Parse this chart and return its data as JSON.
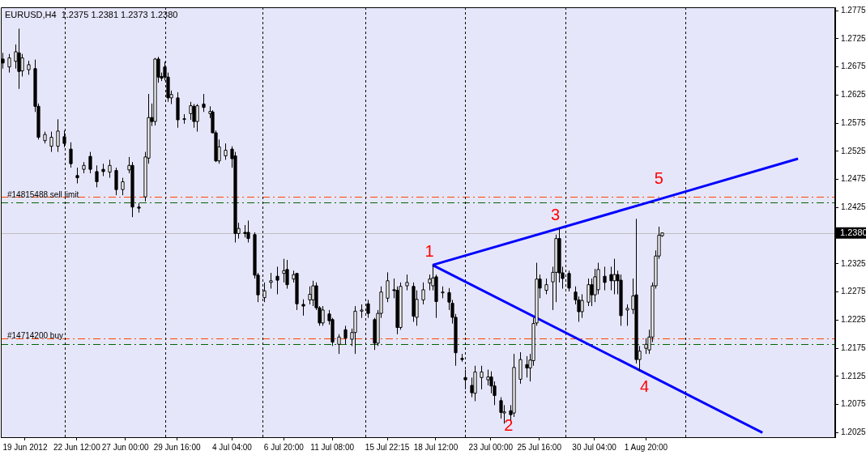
{
  "chart_data": {
    "type": "candlestick",
    "title": "EURUSD,H4  1.2375 1.2381 1.2373 1.2380",
    "categories": [
      null,
      null,
      null,
      null,
      null,
      null,
      null,
      "19 Jun 2012",
      null,
      null,
      null,
      null,
      null,
      null,
      null,
      null,
      null,
      null,
      null,
      null,
      null,
      null,
      null,
      "22 Jun 12:00",
      null,
      null,
      null,
      null,
      null,
      null,
      null,
      null,
      null,
      null,
      null,
      null,
      null,
      null,
      "27 Jun 00:00",
      null,
      null,
      null,
      null,
      null,
      null,
      null,
      null,
      null,
      null,
      null,
      null,
      null,
      null,
      null,
      "29 Jun 16:00",
      null,
      null,
      null,
      null,
      null,
      null,
      null,
      null,
      null,
      null,
      null,
      null,
      null,
      null,
      null,
      null,
      "4 Jul 04:00",
      null,
      null,
      null,
      null,
      null,
      null,
      null,
      null,
      null,
      null,
      null,
      null,
      null,
      null,
      null,
      "6 Jul 20:00",
      null,
      null,
      null,
      null,
      null,
      null,
      null,
      null,
      null,
      null,
      null,
      null,
      null,
      null,
      "11 Jul 08:00",
      null,
      null,
      null,
      null,
      null,
      null,
      null,
      null,
      null,
      null,
      null,
      null,
      null,
      null,
      null,
      null,
      "15 Jul 22:15",
      null,
      null,
      null,
      null,
      null,
      null,
      null,
      null,
      null,
      null,
      null,
      null,
      null,
      null,
      "18 Jul 12:00",
      null,
      null,
      null,
      null,
      null,
      null,
      null,
      null,
      null,
      null,
      null,
      null,
      null,
      null,
      null,
      null,
      "23 Jul 00:00",
      null,
      null,
      null,
      null,
      null,
      null,
      null,
      null,
      null,
      null,
      null,
      null,
      null,
      null,
      "25 Jul 16:00",
      null,
      null,
      null,
      null,
      null,
      null,
      null,
      null,
      null,
      null,
      null,
      null,
      null,
      null,
      null,
      null,
      "30 Jul 04:00",
      null,
      null,
      null,
      null,
      null,
      null,
      null,
      null,
      null,
      null,
      null,
      null,
      null,
      null,
      null,
      "1 Aug 20:00",
      null,
      null,
      null,
      null,
      null,
      null,
      null,
      null,
      null,
      null,
      null,
      null,
      null,
      null,
      null,
      null,
      null,
      null,
      null,
      null,
      null,
      null,
      null,
      null,
      null,
      null,
      null,
      null,
      null,
      null,
      null,
      null,
      null,
      null,
      null,
      null,
      null,
      null,
      null,
      null,
      null,
      null,
      null,
      null,
      null,
      null,
      null,
      null,
      null,
      null,
      null,
      null,
      null,
      null,
      null,
      null,
      null,
      null
    ],
    "ohlc": [
      [
        1.2689,
        1.27,
        1.2672,
        1.2682
      ],
      null,
      [
        1.2675,
        1.2698,
        1.2665,
        1.2691
      ],
      null,
      [
        1.2685,
        1.2715,
        1.2672,
        1.2702
      ],
      [
        1.27,
        1.2743,
        1.2636,
        1.2667
      ],
      [
        1.2668,
        1.2698,
        1.2658,
        1.2691
      ],
      null,
      [
        1.267,
        1.2686,
        1.2661,
        1.2679
      ],
      null,
      [
        1.2672,
        1.2688,
        1.2595,
        1.2605
      ],
      [
        1.2605,
        1.261,
        1.2546,
        1.255
      ],
      null,
      [
        1.2544,
        1.256,
        1.2539,
        1.2555
      ],
      null,
      [
        1.2534,
        1.256,
        1.2524,
        1.255
      ],
      null,
      [
        1.2534,
        1.2582,
        1.2524,
        1.2561
      ],
      null,
      [
        1.2551,
        1.2562,
        1.2532,
        1.2539
      ],
      null,
      [
        1.2529,
        1.2541,
        1.2496,
        1.2503
      ],
      null,
      [
        1.2482,
        1.2496,
        1.2468,
        1.2478
      ],
      null,
      [
        1.2493,
        1.2506,
        1.2486,
        1.25
      ],
      null,
      [
        1.2516,
        1.2524,
        1.2486,
        1.2493
      ],
      null,
      [
        1.2489,
        1.25,
        1.2461,
        1.2471
      ],
      null,
      [
        1.2493,
        1.2503,
        1.2481,
        1.2489
      ],
      null,
      [
        1.2488,
        1.251,
        1.2478,
        1.25
      ],
      null,
      [
        1.2491,
        1.2496,
        1.2447,
        1.2457
      ],
      null,
      [
        1.2457,
        1.2478,
        1.2447,
        1.2471
      ],
      null,
      [
        1.2492,
        1.2515,
        1.2486,
        1.25
      ],
      [
        1.25,
        1.2506,
        1.2408,
        1.2426
      ],
      null,
      [
        1.2426,
        1.2433,
        1.2416,
        1.2424
      ],
      null,
      [
        1.2444,
        1.2524,
        1.2436,
        1.2515
      ],
      [
        1.2513,
        1.2627,
        1.2503,
        1.2585
      ],
      [
        1.2585,
        1.261,
        1.257,
        1.2578
      ],
      [
        1.2578,
        1.2691,
        1.2571,
        1.2689
      ],
      [
        1.2689,
        1.2693,
        1.2647,
        1.2657
      ],
      [
        1.2658,
        1.2665,
        1.265,
        1.2655
      ],
      [
        1.2675,
        1.2684,
        1.2651,
        1.2657
      ],
      [
        1.2657,
        1.2665,
        1.2613,
        1.262
      ],
      [
        1.262,
        1.2633,
        1.2609,
        1.2626
      ],
      null,
      [
        1.262,
        1.263,
        1.2567,
        1.2581
      ],
      null,
      [
        1.2582,
        1.2591,
        1.2574,
        1.2583
      ],
      null,
      [
        1.2592,
        1.2613,
        1.2581,
        1.2606
      ],
      [
        1.2605,
        1.2609,
        1.2567,
        1.2578
      ],
      [
        1.2578,
        1.2609,
        1.256,
        1.2606
      ],
      null,
      [
        1.2609,
        1.2627,
        1.2595,
        1.2603
      ],
      null,
      [
        1.2592,
        1.2605,
        1.2584,
        1.2596
      ],
      [
        1.2595,
        1.2598,
        1.2557,
        1.2558
      ],
      [
        1.2558,
        1.2562,
        1.2506,
        1.2508
      ],
      [
        1.2508,
        1.2546,
        1.2503,
        1.2533
      ],
      null,
      [
        1.2517,
        1.2539,
        1.251,
        1.2527
      ],
      null,
      [
        1.2529,
        1.2534,
        1.2496,
        1.2512
      ],
      [
        1.2517,
        1.2524,
        1.2363,
        1.2379
      ],
      [
        1.2379,
        1.2398,
        1.237,
        1.2388
      ],
      null,
      [
        1.2381,
        1.2394,
        1.2372,
        1.2379
      ],
      [
        1.2381,
        1.2402,
        1.2363,
        1.237
      ],
      null,
      [
        1.2377,
        1.2381,
        1.2299,
        1.2305
      ],
      [
        1.2305,
        1.2309,
        1.2257,
        1.227
      ],
      null,
      [
        1.2265,
        1.2292,
        1.2257,
        1.2277
      ],
      null,
      [
        1.2292,
        1.2309,
        1.2281,
        1.2295
      ],
      null,
      [
        1.2303,
        1.232,
        1.2271,
        1.2296
      ],
      null,
      [
        1.2308,
        1.2334,
        1.2292,
        1.2313
      ],
      [
        1.2315,
        1.2332,
        1.2281,
        1.2288
      ],
      null,
      [
        1.2298,
        1.2313,
        1.2292,
        1.2306
      ],
      [
        1.2308,
        1.2309,
        1.2243,
        1.2254
      ],
      null,
      [
        1.2253,
        1.2262,
        1.2233,
        1.225
      ],
      null,
      [
        1.2261,
        1.2285,
        1.2253,
        1.2271
      ],
      [
        1.2261,
        1.2295,
        1.225,
        1.2286
      ],
      [
        1.2286,
        1.2292,
        1.2243,
        1.2247
      ],
      [
        1.2247,
        1.225,
        1.2215,
        1.222
      ],
      [
        1.222,
        1.225,
        1.2215,
        1.2243
      ],
      null,
      [
        1.2236,
        1.2243,
        1.2217,
        1.2224
      ],
      [
        1.2226,
        1.2229,
        1.2179,
        1.2186
      ],
      null,
      [
        1.2182,
        1.22,
        1.2165,
        1.2195
      ],
      null,
      [
        1.2208,
        1.2215,
        1.2182,
        1.2193
      ],
      null,
      [
        1.2191,
        1.221,
        1.2179,
        1.2203
      ],
      [
        1.2203,
        1.225,
        1.2165,
        1.2241
      ],
      null,
      [
        1.2241,
        1.2253,
        1.2229,
        1.2243
      ],
      null,
      [
        1.2254,
        1.2261,
        1.2229,
        1.2237
      ],
      null,
      [
        1.2226,
        1.2229,
        1.2172,
        1.2184
      ],
      [
        1.2184,
        1.2243,
        1.2179,
        1.2237
      ],
      [
        1.2237,
        1.2285,
        1.2229,
        1.2275
      ],
      null,
      [
        1.2264,
        1.231,
        1.2257,
        1.2295
      ],
      null,
      [
        1.2279,
        1.2299,
        1.2264,
        1.2278
      ],
      [
        1.2278,
        1.2285,
        1.22,
        1.2212
      ],
      [
        1.2212,
        1.2292,
        1.2208,
        1.2285
      ],
      null,
      [
        1.2286,
        1.2306,
        1.2278,
        1.2292
      ],
      null,
      [
        1.2285,
        1.2292,
        1.2222,
        1.2232
      ],
      [
        1.223,
        1.2278,
        1.2215,
        1.2262
      ],
      null,
      [
        1.2261,
        1.2292,
        1.2253,
        1.2279
      ],
      null,
      [
        1.2291,
        1.2306,
        1.2278,
        1.2298
      ],
      [
        1.2286,
        1.2323,
        1.2278,
        1.23
      ],
      [
        1.2302,
        1.2306,
        1.2229,
        1.2258
      ],
      null,
      [
        1.2274,
        1.2285,
        1.2264,
        1.2275
      ],
      null,
      [
        1.2274,
        1.2282,
        1.2243,
        1.2257
      ],
      [
        1.2255,
        1.2261,
        1.2219,
        1.223
      ],
      [
        1.223,
        1.2236,
        1.2144,
        1.2167
      ],
      null,
      [
        1.2157,
        1.2165,
        1.2151,
        1.2155
      ],
      [
        1.2123,
        1.2137,
        1.2102,
        1.2119
      ],
      null,
      [
        1.2109,
        1.2123,
        1.2088,
        1.2096
      ],
      [
        1.2095,
        1.2144,
        1.2081,
        1.2133
      ],
      null,
      [
        1.2123,
        1.2144,
        1.2102,
        1.2133
      ],
      null,
      [
        1.2119,
        1.2137,
        1.2109,
        1.2124
      ],
      [
        1.2124,
        1.2134,
        1.2095,
        1.2108
      ],
      [
        1.2108,
        1.2116,
        1.2074,
        1.2091
      ],
      null,
      [
        1.2082,
        1.2088,
        1.205,
        1.2061
      ],
      [
        1.206,
        1.2074,
        1.2041,
        1.2062
      ],
      null,
      [
        1.2064,
        1.2074,
        1.2046,
        1.2057
      ],
      [
        1.206,
        1.2165,
        1.2053,
        1.2141
      ],
      null,
      [
        1.212,
        1.2168,
        1.2112,
        1.2155
      ],
      null,
      [
        1.2146,
        1.2161,
        1.2123,
        1.214
      ],
      [
        1.214,
        1.2165,
        1.2116,
        1.2154
      ],
      [
        1.2153,
        1.2229,
        1.2144,
        1.2219
      ],
      [
        1.222,
        1.2327,
        1.2215,
        1.2298
      ],
      [
        1.2298,
        1.2306,
        1.2264,
        1.2282
      ],
      null,
      [
        1.2278,
        1.2299,
        1.2271,
        1.2288
      ],
      null,
      [
        1.2293,
        1.232,
        1.2243,
        1.231
      ],
      [
        1.231,
        1.2377,
        1.2257,
        1.237
      ],
      [
        1.237,
        1.2388,
        1.2292,
        1.2309
      ],
      [
        1.2309,
        1.232,
        1.2281,
        1.2299
      ],
      null,
      [
        1.2308,
        1.2313,
        1.2276,
        1.2282
      ],
      null,
      [
        1.2275,
        1.2285,
        1.2253,
        1.2261
      ],
      [
        1.2261,
        1.2267,
        1.2222,
        1.224
      ],
      [
        1.224,
        1.2271,
        1.2229,
        1.226
      ],
      null,
      [
        1.2257,
        1.2299,
        1.225,
        1.2288
      ],
      [
        1.2288,
        1.2299,
        1.225,
        1.227
      ],
      [
        1.227,
        1.2316,
        1.2257,
        1.2302
      ],
      [
        1.2279,
        1.2327,
        1.2271,
        1.2315
      ],
      null,
      [
        1.2303,
        1.232,
        1.2278,
        1.2292
      ],
      null,
      [
        1.2306,
        1.232,
        1.2278,
        1.2295
      ],
      [
        1.2295,
        1.2334,
        1.2271,
        1.2306
      ],
      [
        1.2306,
        1.2313,
        1.2271,
        1.2295
      ],
      [
        1.2296,
        1.2306,
        1.2215,
        1.2233
      ],
      null,
      [
        1.2243,
        1.2253,
        1.2215,
        1.2246
      ],
      null,
      [
        1.2244,
        1.2299,
        1.2236,
        1.2268
      ],
      [
        1.227,
        1.2405,
        1.2148,
        1.2155
      ],
      [
        1.2155,
        1.2179,
        1.2134,
        1.217
      ],
      null,
      [
        1.2175,
        1.2193,
        1.2165,
        1.2182
      ],
      [
        1.2172,
        1.2208,
        1.2165,
        1.2195
      ],
      [
        1.2195,
        1.2292,
        1.2186,
        1.2286
      ],
      [
        1.2286,
        1.2349,
        1.2281,
        1.2339
      ],
      [
        1.2339,
        1.2391,
        1.2334,
        1.2376
      ],
      [
        1.2375,
        1.2381,
        1.2373,
        1.238
      ],
      null,
      null,
      null,
      null,
      null,
      null,
      null,
      null,
      null,
      null,
      null,
      null,
      null,
      null,
      null,
      null,
      null,
      null,
      null,
      null,
      null,
      null,
      null,
      null,
      null,
      null,
      null,
      null,
      null,
      null,
      null,
      null,
      null,
      null,
      null,
      null,
      null,
      null,
      null,
      null,
      null,
      null,
      null,
      null,
      null,
      null,
      null,
      null,
      null,
      null,
      null,
      null,
      null
    ],
    "value_labels": [
      null,
      null,
      null,
      null,
      null,
      null,
      null,
      null,
      null,
      null,
      null,
      null,
      null,
      null,
      null,
      null,
      null,
      null,
      null,
      null,
      null,
      null,
      null,
      null,
      null,
      null,
      null,
      null,
      null,
      null,
      null,
      null,
      null,
      null,
      null,
      null,
      null,
      null,
      null,
      null,
      null,
      null,
      null,
      null,
      null,
      null,
      null,
      null,
      null,
      null,
      null,
      null,
      null,
      null,
      null,
      null,
      null,
      null,
      null,
      null,
      null,
      null,
      null,
      null,
      null,
      null,
      null,
      null,
      null,
      null,
      null,
      null,
      null,
      null,
      null,
      null,
      null,
      null,
      null,
      null,
      null,
      null,
      null,
      null,
      null,
      null,
      null,
      null,
      null,
      null,
      null,
      null,
      null,
      null,
      null,
      null,
      null,
      null,
      null,
      null,
      null,
      null,
      null,
      null,
      null,
      null,
      null,
      null,
      null,
      null,
      null,
      null,
      null,
      null,
      null,
      null,
      null,
      null,
      null,
      null,
      null,
      null,
      null,
      null,
      null,
      null,
      null,
      null,
      null,
      null,
      null,
      null,
      null,
      "1",
      null,
      null,
      null,
      null,
      null,
      null,
      null,
      null,
      null,
      null,
      null,
      null,
      null,
      null,
      null,
      null,
      null,
      null,
      null,
      null,
      null,
      "2",
      null,
      null,
      null,
      null,
      null,
      null,
      null,
      null,
      null,
      null,
      null,
      null,
      null,
      null,
      null,
      null,
      "3",
      null,
      null,
      null,
      null,
      null,
      null,
      null,
      null,
      null,
      null,
      null,
      null,
      null,
      null,
      null,
      null,
      null,
      null,
      null,
      null,
      null,
      null,
      null,
      null,
      "4",
      null,
      null,
      null,
      null,
      null,
      null,
      null,
      null,
      null,
      null,
      null,
      null,
      null,
      null,
      null,
      null,
      null,
      null,
      null,
      null,
      null,
      null,
      null,
      null,
      null,
      null,
      null,
      null,
      null,
      null,
      null,
      null,
      null,
      null,
      null,
      null,
      null,
      null,
      null,
      null,
      null,
      null,
      null,
      null,
      null,
      null,
      null,
      null,
      null,
      null,
      null,
      null,
      null,
      null,
      null,
      null,
      null,
      null,
      null,
      null
    ],
    "series": [
      {
        "type": "line",
        "color": "#0000ff",
        "values": [
          null,
          null,
          null,
          null,
          null,
          null,
          null,
          null,
          null,
          null,
          null,
          null,
          null,
          null,
          null,
          null,
          null,
          null,
          null,
          null,
          null,
          null,
          null,
          null,
          null,
          null,
          null,
          null,
          null,
          null,
          null,
          null,
          null,
          null,
          null,
          null,
          null,
          null,
          null,
          null,
          null,
          null,
          null,
          null,
          null,
          null,
          null,
          null,
          null,
          null,
          null,
          null,
          null,
          null,
          null,
          null,
          null,
          null,
          null,
          null,
          null,
          null,
          null,
          null,
          null,
          null,
          null,
          null,
          null,
          null,
          null,
          null,
          null,
          null,
          null,
          null,
          null,
          null,
          null,
          null,
          null,
          null,
          null,
          null,
          null,
          null,
          null,
          null,
          null,
          null,
          null,
          null,
          null,
          null,
          null,
          null,
          null,
          null,
          null,
          null,
          null,
          null,
          null,
          null,
          null,
          null,
          null,
          null,
          null,
          null,
          null,
          null,
          null,
          null,
          null,
          null,
          null,
          null,
          null,
          null,
          null,
          null,
          null,
          null,
          null,
          null,
          null,
          null,
          null,
          null,
          null,
          null,
          null,
          1.2323,
          null,
          null,
          null,
          null,
          null,
          null,
          null,
          null,
          null,
          null,
          null,
          null,
          null,
          null,
          null,
          null,
          null,
          null,
          null,
          null,
          null,
          null,
          null,
          null,
          null,
          null,
          null,
          null,
          null,
          null,
          null,
          null,
          null,
          null,
          null,
          null,
          null,
          null,
          null,
          null,
          null,
          null,
          null,
          null,
          null,
          null,
          null,
          null,
          null,
          null,
          null,
          null,
          null,
          null,
          null,
          null,
          null,
          null,
          null,
          null,
          null,
          null,
          null,
          null,
          null,
          null,
          null,
          null,
          null,
          null,
          null,
          1.2443,
          null,
          null,
          null,
          null,
          null,
          null,
          null,
          null,
          null,
          null,
          null,
          null,
          null,
          null,
          null,
          null,
          null,
          null,
          null,
          null,
          null,
          null,
          null,
          null,
          null,
          null,
          null,
          null,
          null,
          null,
          null,
          null,
          null,
          null,
          null,
          null,
          null,
          null,
          null,
          null,
          1.2512,
          null,
          null,
          null,
          null,
          null,
          null,
          null,
          null,
          null,
          null,
          null
        ]
      },
      {
        "type": "line",
        "color": "#0000ff",
        "values": [
          null,
          null,
          null,
          null,
          null,
          null,
          null,
          null,
          null,
          null,
          null,
          null,
          null,
          null,
          null,
          null,
          null,
          null,
          null,
          null,
          null,
          null,
          null,
          null,
          null,
          null,
          null,
          null,
          null,
          null,
          null,
          null,
          null,
          null,
          null,
          null,
          null,
          null,
          null,
          null,
          null,
          null,
          null,
          null,
          null,
          null,
          null,
          null,
          null,
          null,
          null,
          null,
          null,
          null,
          null,
          null,
          null,
          null,
          null,
          null,
          null,
          null,
          null,
          null,
          null,
          null,
          null,
          null,
          null,
          null,
          null,
          null,
          null,
          null,
          null,
          null,
          null,
          null,
          null,
          null,
          null,
          null,
          null,
          null,
          null,
          null,
          null,
          null,
          null,
          null,
          null,
          null,
          null,
          null,
          null,
          null,
          null,
          null,
          null,
          null,
          null,
          null,
          null,
          null,
          null,
          null,
          null,
          null,
          null,
          null,
          null,
          null,
          null,
          null,
          null,
          null,
          null,
          null,
          null,
          null,
          null,
          null,
          null,
          null,
          null,
          null,
          null,
          null,
          null,
          null,
          null,
          null,
          null,
          1.2323,
          null,
          null,
          null,
          null,
          null,
          null,
          null,
          null,
          null,
          null,
          null,
          null,
          null,
          null,
          null,
          null,
          null,
          null,
          null,
          null,
          null,
          null,
          null,
          null,
          null,
          null,
          null,
          null,
          null,
          null,
          null,
          null,
          null,
          null,
          null,
          null,
          null,
          null,
          null,
          null,
          null,
          null,
          null,
          null,
          null,
          null,
          null,
          null,
          null,
          null,
          null,
          null,
          null,
          null,
          null,
          null,
          null,
          null,
          null,
          null,
          null,
          null,
          null,
          null,
          null,
          null,
          null,
          null,
          null,
          null,
          null,
          null,
          null,
          null,
          null,
          null,
          null,
          null,
          null,
          null,
          null,
          null,
          null,
          null,
          null,
          null,
          null,
          null,
          null,
          null,
          null,
          null,
          null,
          null,
          null,
          null,
          null,
          null,
          null,
          null,
          null,
          1.2025,
          null,
          null,
          null,
          null,
          null,
          null,
          null,
          null,
          null,
          null,
          null,
          null,
          null,
          null,
          null,
          null,
          null,
          null,
          null,
          null,
          null,
          null
        ]
      }
    ],
    "ylim": [
      1.2017,
      1.2781
    ],
    "yticks": [
      1.2025,
      1.2075,
      1.2125,
      1.2175,
      1.2225,
      1.2275,
      1.2325,
      {
        "value": 1.2375,
        "label": null
      },
      1.2425,
      1.2475,
      1.2525,
      1.2575,
      1.2625,
      1.2675,
      1.2725,
      1.2775
    ],
    "ref_lines": [
      {
        "axis": "y",
        "value": 1.2444,
        "label": "#14815488 sell limit",
        "color": "#ff4500",
        "line_style": "dashed"
      },
      {
        "axis": "y",
        "value": 1.2434,
        "color": "#006400",
        "line_style": "dashed"
      },
      {
        "axis": "y",
        "value": 1.2193,
        "label": "#14714200 buy",
        "color": "#ff4500",
        "line_style": "dashed"
      },
      {
        "axis": "y",
        "value": 1.2183,
        "color": "#006400",
        "line_style": "dashed"
      },
      {
        "axis": "y",
        "value": 1.238,
        "label": "1.2380",
        "color": "#c0c0c0",
        "line_style": "solid"
      }
    ],
    "annotations": [
      {
        "text": "5",
        "y": 1.2443
      }
    ],
    "legend": false
  }
}
